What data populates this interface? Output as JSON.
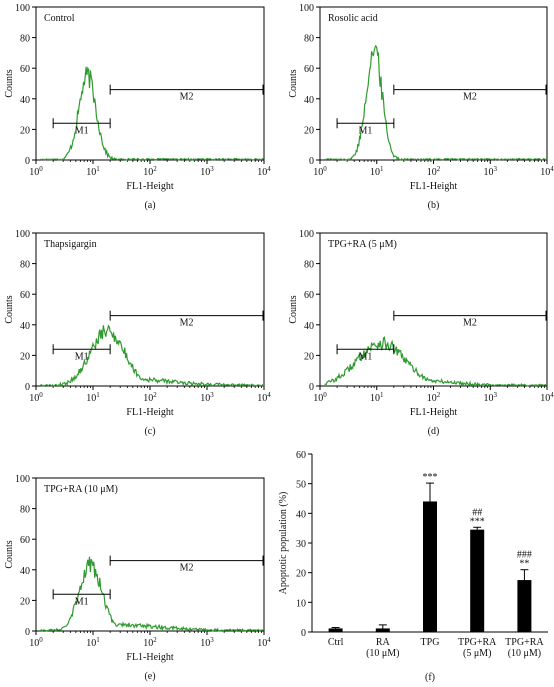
{
  "chart_data": [
    {
      "type": "histogram",
      "panel_label": "(a)",
      "title": "Control",
      "xlabel": "FL1-Height",
      "ylabel": "Counts",
      "xscale": "log",
      "xlim": [
        1,
        10000
      ],
      "ylim": [
        0,
        100
      ],
      "yticks": [
        "0",
        "20",
        "40",
        "60",
        "80",
        "100"
      ],
      "peak_fl1": 8,
      "peak_counts": 55,
      "spread_decades": 0.15,
      "tail_fraction": 0,
      "markers": [
        {
          "label": "M1",
          "start": 2,
          "end": 20,
          "counts": 24
        },
        {
          "label": "M2",
          "start": 20,
          "end": 10000,
          "counts": 46
        }
      ]
    },
    {
      "type": "histogram",
      "panel_label": "(b)",
      "title": "Rosolic acid",
      "xlabel": "FL1-Height",
      "ylabel": "Counts",
      "xscale": "log",
      "xlim": [
        1,
        10000
      ],
      "ylim": [
        0,
        100
      ],
      "yticks": [
        "0",
        "20",
        "40",
        "60",
        "80",
        "100"
      ],
      "peak_fl1": 9,
      "peak_counts": 72,
      "spread_decades": 0.14,
      "tail_fraction": 0,
      "markers": [
        {
          "label": "M1",
          "start": 2,
          "end": 20,
          "counts": 24
        },
        {
          "label": "M2",
          "start": 20,
          "end": 10000,
          "counts": 46
        }
      ]
    },
    {
      "type": "histogram",
      "panel_label": "(c)",
      "title": "Thapsigargin",
      "xlabel": "FL1-Height",
      "ylabel": "Counts",
      "xscale": "log",
      "xlim": [
        1,
        10000
      ],
      "ylim": [
        0,
        100
      ],
      "yticks": [
        "0",
        "20",
        "40",
        "60",
        "80",
        "100"
      ],
      "peak_fl1": 18,
      "peak_counts": 36,
      "spread_decades": 0.3,
      "tail_fraction": 0.15,
      "markers": [
        {
          "label": "M1",
          "start": 2,
          "end": 20,
          "counts": 24
        },
        {
          "label": "M2",
          "start": 20,
          "end": 10000,
          "counts": 46
        }
      ]
    },
    {
      "type": "histogram",
      "panel_label": "(d)",
      "title": "TPG+RA (5 μM)",
      "xlabel": "FL1-Height",
      "ylabel": "Counts",
      "xscale": "log",
      "xlim": [
        1,
        10000
      ],
      "ylim": [
        0,
        100
      ],
      "yticks": [
        "0",
        "20",
        "40",
        "60",
        "80",
        "100"
      ],
      "peak_fl1": 12,
      "peak_counts": 28,
      "spread_decades": 0.42,
      "tail_fraction": 0.18,
      "markers": [
        {
          "label": "M1",
          "start": 2,
          "end": 20,
          "counts": 24
        },
        {
          "label": "M2",
          "start": 20,
          "end": 10000,
          "counts": 46
        }
      ]
    },
    {
      "type": "histogram",
      "panel_label": "(e)",
      "title": "TPG+RA (10 μM)",
      "xlabel": "FL1-Height",
      "ylabel": "Counts",
      "xscale": "log",
      "xlim": [
        1,
        10000
      ],
      "ylim": [
        0,
        100
      ],
      "yticks": [
        "0",
        "20",
        "40",
        "60",
        "80",
        "100"
      ],
      "peak_fl1": 9,
      "peak_counts": 43,
      "spread_decades": 0.2,
      "tail_fraction": 0.12,
      "markers": [
        {
          "label": "M1",
          "start": 2,
          "end": 20,
          "counts": 24
        },
        {
          "label": "M2",
          "start": 20,
          "end": 10000,
          "counts": 46
        }
      ]
    },
    {
      "type": "bar",
      "panel_label": "(f)",
      "xlabel": "",
      "ylabel": "Apoptotic population (%)",
      "ylim": [
        0,
        60
      ],
      "yticks": [
        "0",
        "10",
        "20",
        "30",
        "40",
        "50",
        "60"
      ],
      "categories": [
        [
          "Ctrl"
        ],
        [
          "RA",
          "(10 μM)"
        ],
        [
          "TPG"
        ],
        [
          "TPG+RA",
          "(5 μM)"
        ],
        [
          "TPG+RA",
          "(10 μM)"
        ]
      ],
      "values": [
        1.2,
        1.2,
        44,
        34.5,
        17.5
      ],
      "errors": [
        0.3,
        1.2,
        6.2,
        0.8,
        3.5
      ],
      "annotations": [
        [],
        [],
        [
          "***"
        ],
        [
          "##",
          "***"
        ],
        [
          "###",
          "**"
        ]
      ]
    }
  ],
  "colors": {
    "histogram_line": "#2f9a2f",
    "bar_fill": "#000000",
    "axis": "#000000"
  }
}
